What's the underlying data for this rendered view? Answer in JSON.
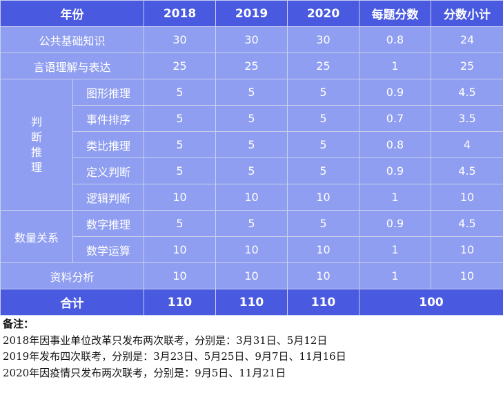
{
  "header": {
    "year_label": "年份",
    "y2018": "2018",
    "y2019": "2019",
    "y2020": "2020",
    "per_question": "每题分数",
    "subtotal": "分数小计"
  },
  "rows": {
    "gonggong": {
      "label": "公共基础知识",
      "v2018": "30",
      "v2019": "30",
      "v2020": "30",
      "score": "0.8",
      "subtotal": "24"
    },
    "yanyu": {
      "label": "言语理解与表达",
      "v2018": "25",
      "v2019": "25",
      "v2020": "25",
      "score": "1",
      "subtotal": "25"
    },
    "panduan": {
      "label_chars": [
        "判",
        "断",
        "推",
        "理"
      ],
      "items": [
        {
          "label": "图形推理",
          "v2018": "5",
          "v2019": "5",
          "v2020": "5",
          "score": "0.9",
          "subtotal": "4.5"
        },
        {
          "label": "事件排序",
          "v2018": "5",
          "v2019": "5",
          "v2020": "5",
          "score": "0.7",
          "subtotal": "3.5"
        },
        {
          "label": "类比推理",
          "v2018": "5",
          "v2019": "5",
          "v2020": "5",
          "score": "0.8",
          "subtotal": "4"
        },
        {
          "label": "定义判断",
          "v2018": "5",
          "v2019": "5",
          "v2020": "5",
          "score": "0.9",
          "subtotal": "4.5"
        },
        {
          "label": "逻辑判断",
          "v2018": "10",
          "v2019": "10",
          "v2020": "10",
          "score": "1",
          "subtotal": "10"
        }
      ]
    },
    "shuliang": {
      "label": "数量关系",
      "items": [
        {
          "label": "数字推理",
          "v2018": "5",
          "v2019": "5",
          "v2020": "5",
          "score": "0.9",
          "subtotal": "4.5"
        },
        {
          "label": "数学运算",
          "v2018": "10",
          "v2019": "10",
          "v2020": "10",
          "score": "1",
          "subtotal": "10"
        }
      ]
    },
    "ziliao": {
      "label": "资料分析",
      "v2018": "10",
      "v2019": "10",
      "v2020": "10",
      "score": "1",
      "subtotal": "10"
    }
  },
  "total": {
    "label": "合计",
    "v2018": "110",
    "v2019": "110",
    "v2020": "110",
    "sum": "100"
  },
  "notes": {
    "title": "备注：",
    "lines": [
      "2018年因事业单位改革只发布两次联考，分别是：3月31日、5月12日",
      "2019年发布四次联考，分别是：3月23日、5月25日、9月7日、11月16日",
      "2020年因疫情只发布两次联考，分别是：9月5日、11月21日"
    ]
  },
  "colors": {
    "header_bg": "#4a5ae0",
    "body_bg": "#8f9ef0",
    "border": "#c8d0ee"
  }
}
